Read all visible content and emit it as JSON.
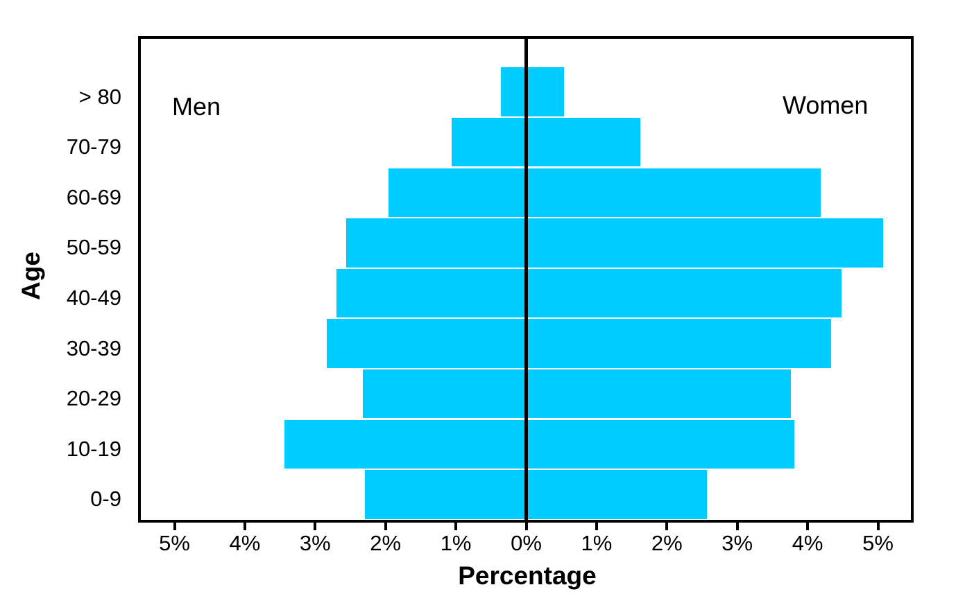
{
  "chart_data": {
    "type": "bar",
    "subtype": "population-pyramid",
    "title": "",
    "xlabel": "Percentage",
    "ylabel": "Age",
    "left_series_label": "Men",
    "right_series_label": "Women",
    "categories_top_to_bottom": [
      "> 80",
      "70-79",
      "60-69",
      "50-59",
      "40-49",
      "30-39",
      "20-29",
      "10-19",
      "0-9"
    ],
    "series": [
      {
        "name": "Men",
        "side": "left",
        "values_pct": [
          0.36,
          1.06,
          1.96,
          2.56,
          2.7,
          2.84,
          2.32,
          3.44,
          2.29
        ]
      },
      {
        "name": "Women",
        "side": "right",
        "values_pct": [
          0.54,
          1.62,
          4.19,
          5.07,
          4.48,
          4.33,
          3.76,
          3.81,
          2.57
        ]
      }
    ],
    "x_axis": {
      "tick_labels": [
        "5%",
        "4%",
        "3%",
        "2%",
        "1%",
        "0%",
        "1%",
        "2%",
        "3%",
        "4%",
        "5%"
      ],
      "tick_values": [
        -5,
        -4,
        -3,
        -2,
        -1,
        0,
        1,
        2,
        3,
        4,
        5
      ],
      "range": [
        -5.5,
        5.5
      ]
    },
    "grid": false,
    "legend_position": "inside-top-corners",
    "colors": {
      "bar": "#00CCFF",
      "axis": "#000000",
      "background": "#FFFFFF"
    }
  }
}
